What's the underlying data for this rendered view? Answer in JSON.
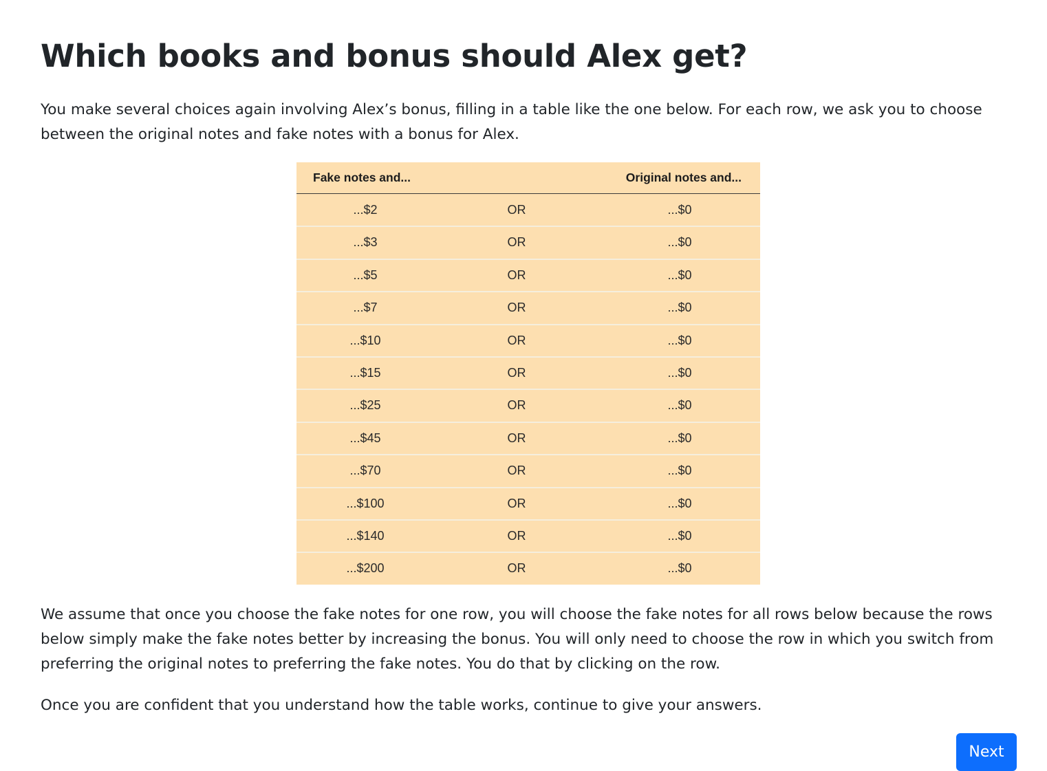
{
  "page": {
    "title": "Which books and bonus should Alex get?",
    "intro": "You make several choices again involving Alex’s bonus, filling in a table like the one below. For each row, we ask you to choose between the original notes and fake notes with a bonus for Alex.",
    "explain": "We assume that once you choose the fake notes for one row, you will choose the fake notes for all rows below because the rows below simply make the fake notes better by increasing the bonus. You will only need to choose the row in which you switch from preferring the original notes to preferring the fake notes. You do that by clicking on the row.",
    "confident": "Once you are confident that you understand how the table works, continue to give your answers."
  },
  "table": {
    "header_fake": "Fake notes and...",
    "header_original": "Original notes and...",
    "rows": [
      {
        "fake": "...$2",
        "or": "OR",
        "original": "...$0"
      },
      {
        "fake": "...$3",
        "or": "OR",
        "original": "...$0"
      },
      {
        "fake": "...$5",
        "or": "OR",
        "original": "...$0"
      },
      {
        "fake": "...$7",
        "or": "OR",
        "original": "...$0"
      },
      {
        "fake": "...$10",
        "or": "OR",
        "original": "...$0"
      },
      {
        "fake": "...$15",
        "or": "OR",
        "original": "...$0"
      },
      {
        "fake": "...$25",
        "or": "OR",
        "original": "...$0"
      },
      {
        "fake": "...$45",
        "or": "OR",
        "original": "...$0"
      },
      {
        "fake": "...$70",
        "or": "OR",
        "original": "...$0"
      },
      {
        "fake": "...$100",
        "or": "OR",
        "original": "...$0"
      },
      {
        "fake": "...$140",
        "or": "OR",
        "original": "...$0"
      },
      {
        "fake": "...$200",
        "or": "OR",
        "original": "...$0"
      }
    ],
    "background_color": "#fddfb0"
  },
  "buttons": {
    "next_label": "Next",
    "next_color": "#0d6efd"
  }
}
